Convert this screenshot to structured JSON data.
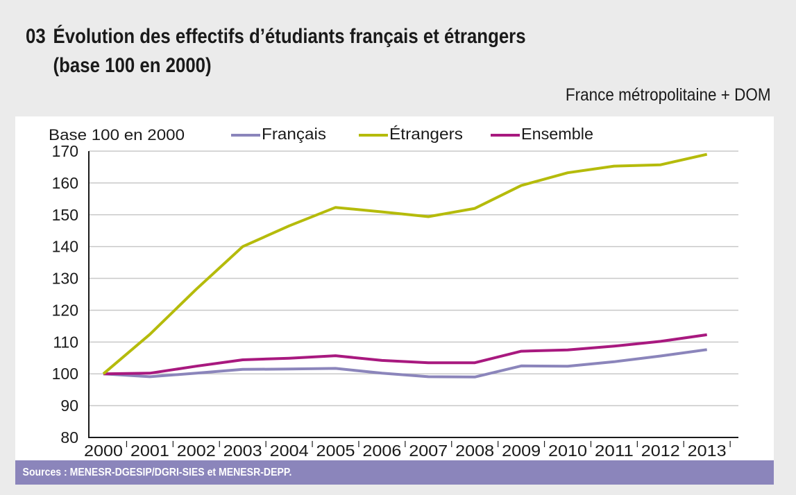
{
  "figure": {
    "number": "03",
    "title_line1": "Évolution des effectifs d’étudiants français et étrangers",
    "title_line2": "(base 100 en 2000)",
    "scope": "France métropolitaine + DOM",
    "source": "Sources : MENESR-DGESIP/DGRI-SIES et MENESR-DEPP."
  },
  "colors": {
    "francais": "#8b85bb",
    "etrangers": "#b5bb0b",
    "ensemble": "#a8197f",
    "footer_bg": "#8b85bb",
    "grid": "#c8c8c8"
  },
  "chart_data": {
    "type": "line",
    "title": "Évolution des effectifs d’étudiants français et étrangers (base 100 en 2000)",
    "ylabel": "Base 100 en 2000",
    "xlabel": "",
    "categories": [
      "2000",
      "2001",
      "2002",
      "2003",
      "2004",
      "2005",
      "2006",
      "2007",
      "2008",
      "2009",
      "2010",
      "2011",
      "2012",
      "2013"
    ],
    "ylim": [
      80,
      170
    ],
    "yticks": [
      80,
      90,
      100,
      110,
      120,
      130,
      140,
      150,
      160,
      170
    ],
    "grid": true,
    "legend_position": "top",
    "series": [
      {
        "key": "francais",
        "name": "Français",
        "values": [
          100,
          99.1,
          100.2,
          101.4,
          101.5,
          101.7,
          100.2,
          99.1,
          99.0,
          102.5,
          102.4,
          103.8,
          105.6,
          107.6
        ]
      },
      {
        "key": "etrangers",
        "name": "Étrangers",
        "values": [
          100,
          112.4,
          126.6,
          140.0,
          146.5,
          152.3,
          150.9,
          149.4,
          152.0,
          159.2,
          163.2,
          165.3,
          165.7,
          169.0
        ]
      },
      {
        "key": "ensemble",
        "name": "Ensemble",
        "values": [
          100,
          100.2,
          102.4,
          104.4,
          104.9,
          105.7,
          104.2,
          103.5,
          103.5,
          107.1,
          107.5,
          108.7,
          110.2,
          112.3
        ]
      }
    ]
  }
}
